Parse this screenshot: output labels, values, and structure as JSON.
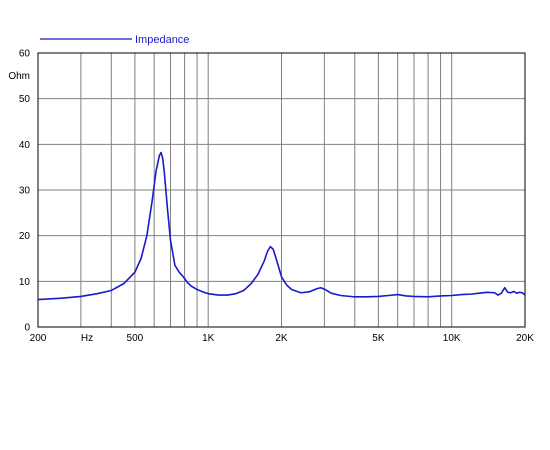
{
  "chart_data": {
    "type": "line",
    "title": "",
    "xlabel": "",
    "ylabel": "",
    "x_scale": "log",
    "xlim": [
      200,
      20000
    ],
    "ylim": [
      0,
      60
    ],
    "y_unit_label": "Ohm",
    "x_unit_label": "Hz",
    "x_ticks": [
      200,
      500,
      1000,
      2000,
      5000,
      10000,
      20000
    ],
    "x_tick_labels": [
      "200",
      "500",
      "1K",
      "2K",
      "5K",
      "10K",
      "20K"
    ],
    "y_ticks": [
      0,
      10,
      20,
      30,
      40,
      50,
      60
    ],
    "y_tick_labels": [
      "0",
      "10",
      "20",
      "30",
      "40",
      "50",
      "60"
    ],
    "grid": true,
    "legend_position": "top-left",
    "colors": {
      "series": "#1a1acc",
      "grid": "#808080",
      "axis": "#000000"
    },
    "series": [
      {
        "name": "Impedance",
        "x": [
          200,
          250,
          300,
          350,
          400,
          450,
          500,
          530,
          560,
          590,
          610,
          630,
          640,
          650,
          660,
          680,
          700,
          730,
          760,
          790,
          820,
          850,
          900,
          950,
          1000,
          1100,
          1200,
          1300,
          1400,
          1500,
          1600,
          1700,
          1750,
          1800,
          1850,
          1900,
          1950,
          2000,
          2100,
          2200,
          2400,
          2600,
          2800,
          2900,
          3000,
          3200,
          3500,
          4000,
          4500,
          5000,
          5500,
          6000,
          6500,
          7000,
          8000,
          9000,
          10000,
          11000,
          12000,
          13000,
          14000,
          15000,
          15500,
          16000,
          16500,
          17000,
          17500,
          18000,
          18500,
          19000,
          19500,
          20000
        ],
        "values": [
          6.0,
          6.3,
          6.7,
          7.3,
          8.0,
          9.5,
          12.0,
          15.0,
          20.0,
          28.0,
          34.0,
          37.5,
          38.2,
          37.0,
          34.0,
          26.0,
          19.0,
          13.5,
          12.0,
          11.0,
          9.8,
          9.0,
          8.2,
          7.7,
          7.3,
          7.0,
          7.0,
          7.3,
          8.0,
          9.5,
          11.5,
          14.5,
          16.5,
          17.6,
          17.0,
          15.0,
          13.0,
          11.0,
          9.2,
          8.2,
          7.5,
          7.7,
          8.4,
          8.6,
          8.3,
          7.4,
          6.9,
          6.6,
          6.6,
          6.7,
          6.9,
          7.1,
          6.8,
          6.7,
          6.6,
          6.8,
          6.9,
          7.1,
          7.2,
          7.4,
          7.6,
          7.5,
          7.0,
          7.4,
          8.6,
          7.6,
          7.5,
          7.8,
          7.4,
          7.6,
          7.5,
          7.0
        ]
      }
    ]
  }
}
